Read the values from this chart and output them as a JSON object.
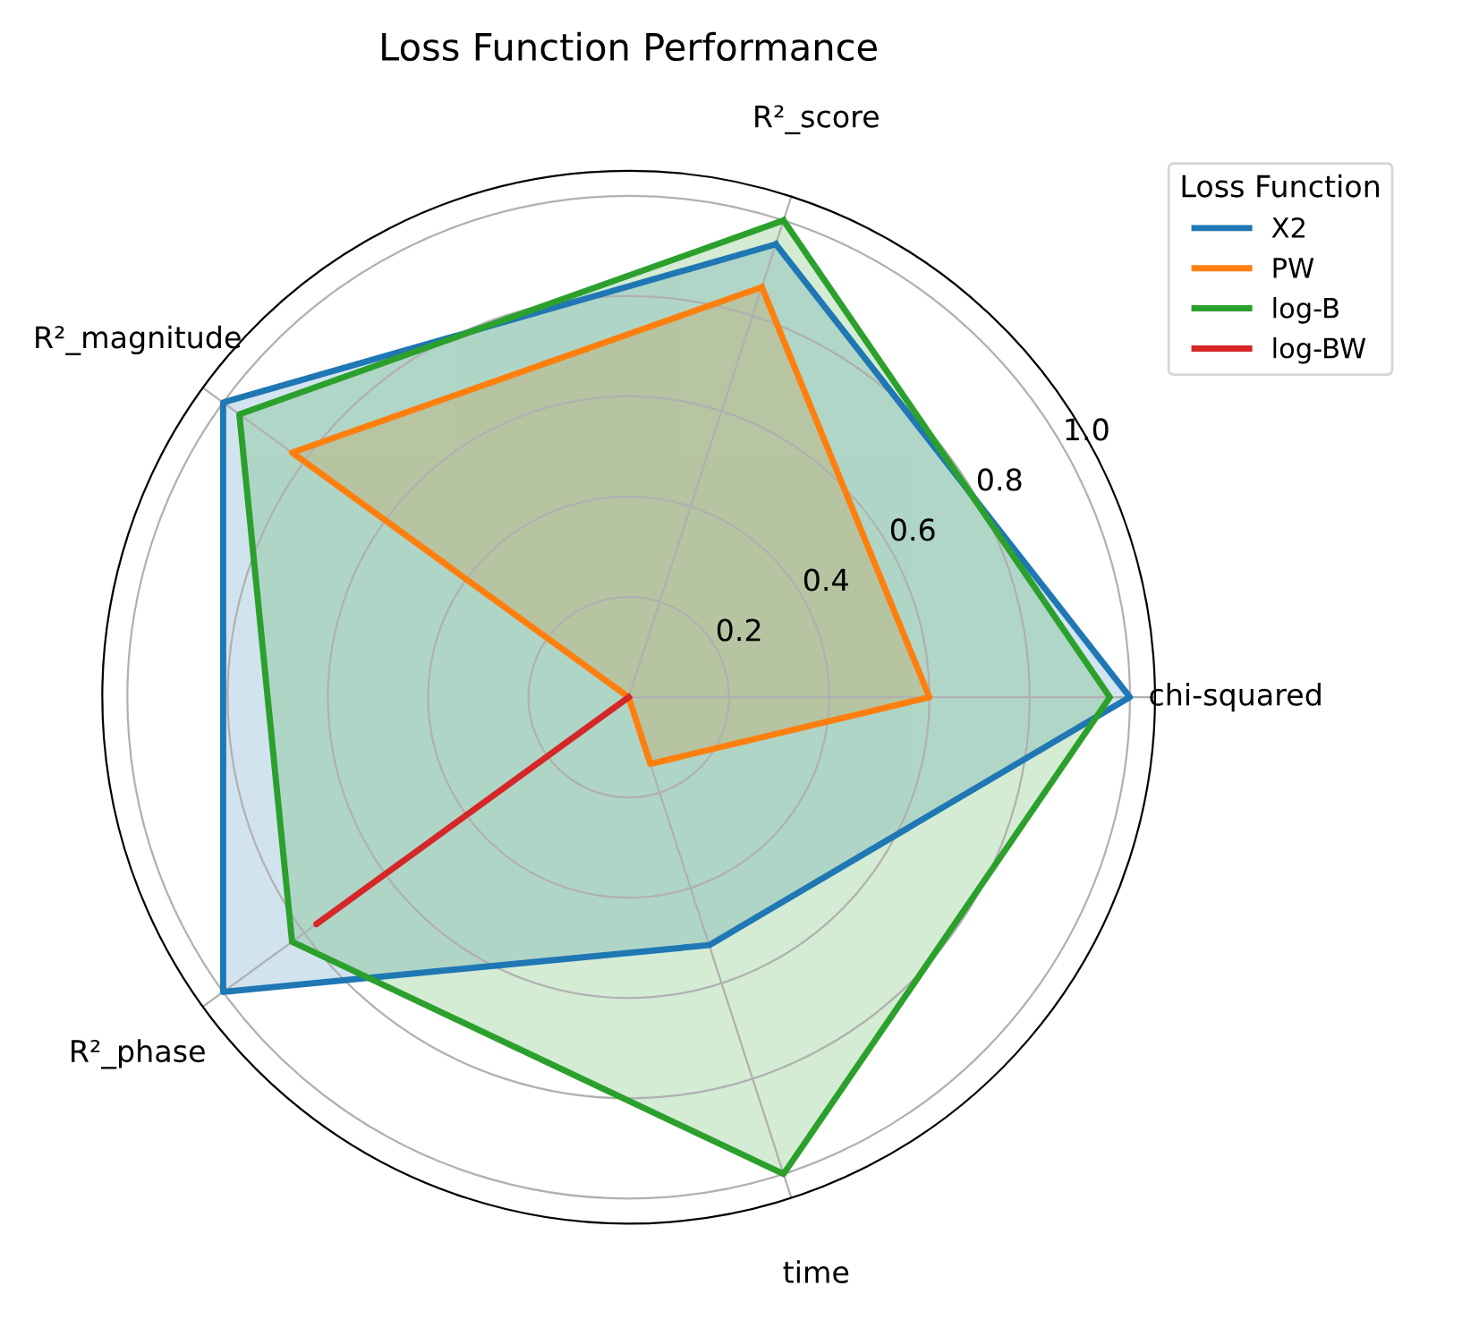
{
  "chart_data": {
    "type": "radar",
    "title": "Loss Function Performance",
    "legend_title": "Loss Function",
    "categories": [
      "R²_score",
      "chi-squared",
      "time",
      "R²_phase",
      "R²_magnitude"
    ],
    "series": [
      {
        "name": "X2",
        "color": "#1f77b4",
        "values": [
          0.95,
          1.0,
          0.52,
          1.0,
          1.0
        ]
      },
      {
        "name": "PW",
        "color": "#ff7f0e",
        "values": [
          0.86,
          0.6,
          0.14,
          0.0,
          0.83
        ]
      },
      {
        "name": "log-B",
        "color": "#2ca02c",
        "values": [
          1.0,
          0.96,
          1.0,
          0.83,
          0.96
        ]
      },
      {
        "name": "log-BW",
        "color": "#d62728",
        "values": [
          0.0,
          0.0,
          0.0,
          0.77,
          0.0
        ]
      }
    ],
    "ylim": [
      0,
      1.05
    ],
    "yticks": [
      0.2,
      0.4,
      0.6,
      0.8,
      {
        "value": 1,
        "label": "1.0"
      }
    ],
    "grid": true,
    "legend": "top right"
  }
}
